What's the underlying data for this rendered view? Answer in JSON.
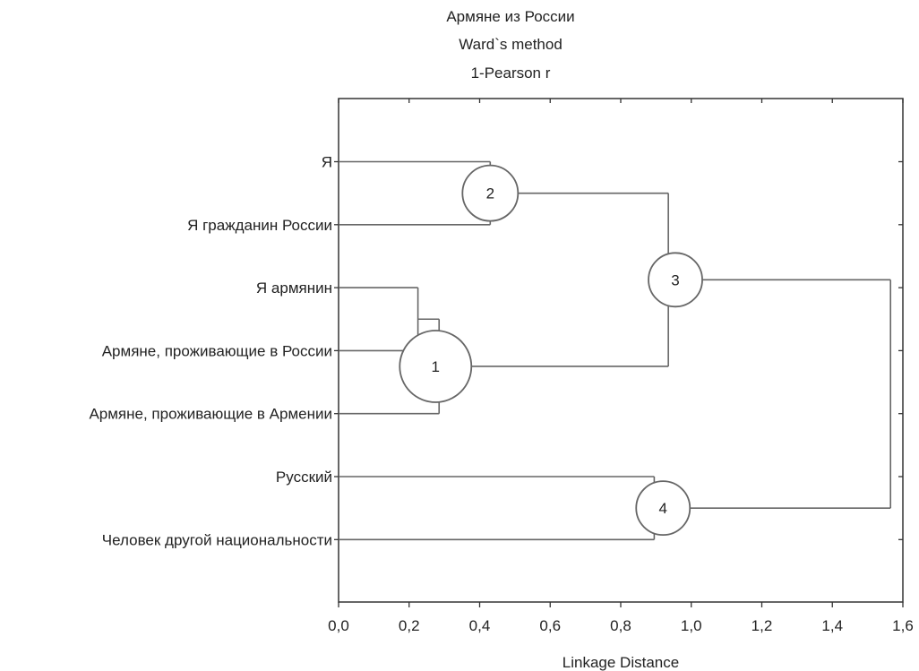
{
  "chart_data": {
    "type": "dendrogram",
    "title": [
      "Армяне из России",
      "Ward`s method",
      "1-Pearson r"
    ],
    "xlabel": "Linkage Distance",
    "xlim": [
      0,
      1.6
    ],
    "xticks": [
      0,
      0.2,
      0.4,
      0.6,
      0.8,
      1.0,
      1.2,
      1.4,
      1.6
    ],
    "xtick_labels": [
      "0,0",
      "0,2",
      "0,4",
      "0,6",
      "0,8",
      "1,0",
      "1,2",
      "1,4",
      "1,6"
    ],
    "grid": false,
    "leaves": [
      "Я",
      "Я гражданин России",
      "Я армянин",
      "Армяне, проживающие в России",
      "Армяне, проживающие в Армении",
      "Русский",
      "Человек другой национальности"
    ],
    "merges": [
      {
        "id": "A",
        "children": [
          "L2",
          "L3"
        ],
        "height": 0.225
      },
      {
        "id": "B",
        "children": [
          "A",
          "L4"
        ],
        "height": 0.285
      },
      {
        "id": "C",
        "children": [
          "L0",
          "L1"
        ],
        "height": 0.43
      },
      {
        "id": "D",
        "children": [
          "L5",
          "L6"
        ],
        "height": 0.895
      },
      {
        "id": "E",
        "children": [
          "C",
          "B"
        ],
        "height": 0.935
      },
      {
        "id": "F",
        "children": [
          "E",
          "D"
        ],
        "height": 1.565
      }
    ],
    "annotations": [
      {
        "label": "1",
        "merge": "B",
        "x": 0.275,
        "r": 40
      },
      {
        "label": "2",
        "merge": "C",
        "x": 0.43,
        "r": 31
      },
      {
        "label": "3",
        "merge": "E",
        "x": 0.955,
        "r": 30
      },
      {
        "label": "4",
        "merge": "D",
        "x": 0.92,
        "r": 30
      }
    ]
  }
}
